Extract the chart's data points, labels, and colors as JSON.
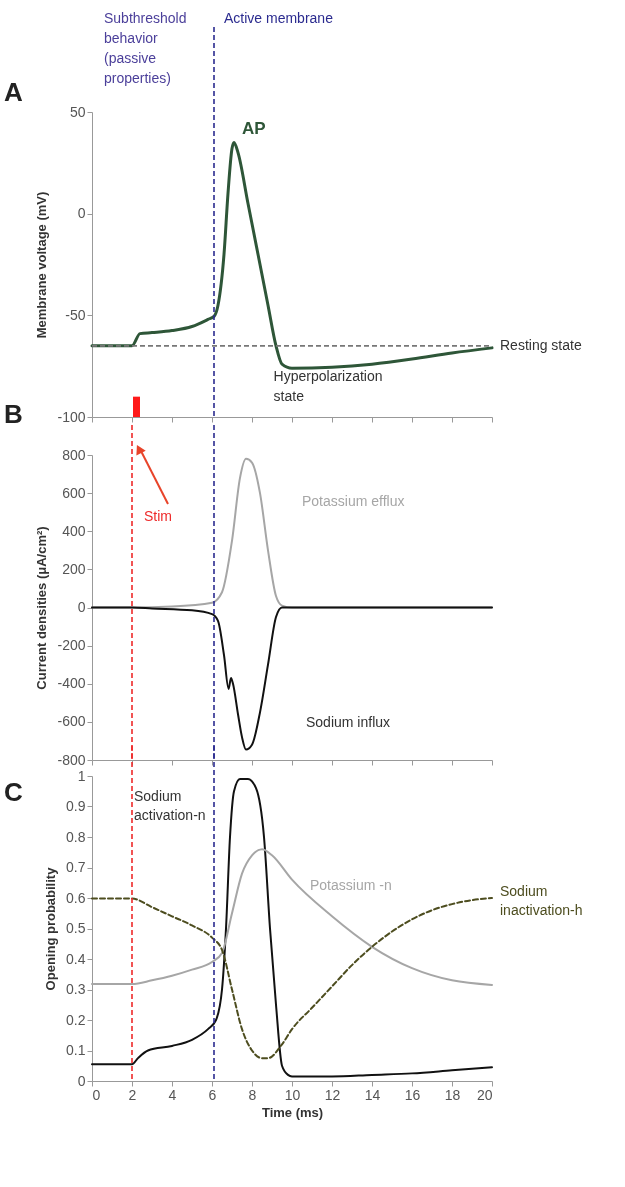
{
  "chart_data": [
    {
      "type": "line",
      "title": "A",
      "ylabel": "Membrane voltage (mV)",
      "xlim": [
        0,
        20
      ],
      "xticks": [
        0,
        2,
        4,
        6,
        8,
        10,
        12,
        14,
        16,
        18,
        20
      ],
      "ylim": [
        -100,
        50
      ],
      "yticks": [
        -100,
        -50,
        0,
        50
      ],
      "tick_labels": "y",
      "series": [
        {
          "color": "#2e5638",
          "x": [
            0,
            2,
            2.4,
            3,
            4,
            5,
            5.8,
            6.1,
            6.3,
            6.6,
            6.8,
            7.0,
            7.1,
            7.3,
            7.8,
            8.3,
            8.8,
            9.2,
            9.5,
            10,
            12,
            14,
            16,
            18,
            20
          ],
          "values": [
            -65,
            -65,
            -59,
            -58.5,
            -57.5,
            -55.5,
            -52,
            -50.5,
            -45,
            -20,
            10,
            32,
            35,
            30,
            5,
            -20,
            -45,
            -65,
            -74,
            -76,
            -75.5,
            -74,
            -71.5,
            -68.5,
            -66
          ]
        },
        {
          "type": "area",
          "color": "#ff1a1a",
          "x": [
            2.05,
            2.05,
            2.4,
            2.4
          ],
          "values": [
            -100,
            -90,
            -90,
            -100
          ]
        }
      ],
      "ref_lines": [
        {
          "axis": "x",
          "value": 6.1,
          "label": "Active membrane",
          "color": "#2b2b8f",
          "line_style": "dashed"
        },
        {
          "axis": "y",
          "value": -65,
          "label": "Resting state",
          "color": "#777777",
          "line_style": "dashed"
        }
      ],
      "annotations": [
        "Subthreshold behavior (passive properties)",
        {
          "text": "AP",
          "x": 7.1,
          "y": 35
        },
        "Hyperpolarization state"
      ]
    },
    {
      "type": "line",
      "title": "B",
      "ylabel": "Current densities (μA/cm²)",
      "xlim": [
        0,
        20
      ],
      "xticks": [
        0,
        2,
        4,
        6,
        8,
        10,
        12,
        14,
        16,
        18,
        20
      ],
      "ylim": [
        -800,
        800
      ],
      "yticks": [
        -800,
        -600,
        -400,
        -200,
        0,
        200,
        400,
        600,
        800
      ],
      "tick_labels": "y",
      "series": [
        {
          "name": "Potassium efflux",
          "color": "#a6a6a6",
          "x": [
            0,
            2,
            4,
            6,
            6.5,
            7,
            7.4,
            7.7,
            8,
            8.4,
            8.8,
            9.2,
            9.5,
            10,
            20
          ],
          "values": [
            0,
            0,
            5,
            25,
            80,
            350,
            680,
            780,
            760,
            600,
            300,
            60,
            10,
            0,
            0
          ]
        },
        {
          "name": "Sodium influx",
          "color": "#111111",
          "x": [
            0,
            2,
            3,
            5,
            6,
            6.3,
            6.6,
            6.83,
            6.95,
            7.05,
            7.3,
            7.5,
            7.7,
            8.0,
            8.4,
            8.8,
            9.2,
            9.5,
            20
          ],
          "values": [
            0,
            0,
            -5,
            -15,
            -35,
            -70,
            -250,
            -427,
            -370,
            -400,
            -560,
            -680,
            -745,
            -720,
            -550,
            -300,
            -50,
            0,
            0
          ]
        }
      ],
      "ref_lines": [
        {
          "axis": "x",
          "value": 2,
          "label": "Stim",
          "color": "#ee2a2a",
          "line_style": "dashed"
        },
        {
          "axis": "x",
          "value": 6.1,
          "color": "#2b2b8f",
          "line_style": "dashed"
        }
      ]
    },
    {
      "type": "line",
      "title": "C",
      "xlabel": "Time (ms)",
      "ylabel": "Opening probability",
      "xlim": [
        0,
        20
      ],
      "xticks": [
        0,
        2,
        4,
        6,
        8,
        10,
        12,
        14,
        16,
        18,
        20
      ],
      "ylim": [
        0,
        1
      ],
      "yticks": [
        0,
        0.1,
        0.2,
        0.3,
        0.4,
        0.5,
        0.6,
        0.7,
        0.8,
        0.9,
        1
      ],
      "series": [
        {
          "name": "Sodium activation-n",
          "color": "#111111",
          "x": [
            0,
            2,
            2.3,
            2.8,
            4,
            5,
            5.8,
            6.2,
            6.5,
            6.7,
            6.9,
            7.1,
            7.4,
            7.8,
            8.2,
            8.6,
            8.9,
            9.2,
            9.5,
            9.8,
            10,
            12,
            14,
            16,
            18,
            20
          ],
          "values": [
            0.055,
            0.055,
            0.075,
            0.1,
            0.115,
            0.135,
            0.17,
            0.2,
            0.3,
            0.5,
            0.8,
            0.95,
            0.99,
            0.99,
            0.96,
            0.8,
            0.5,
            0.25,
            0.05,
            0.02,
            0.015,
            0.015,
            0.02,
            0.025,
            0.035,
            0.045
          ]
        },
        {
          "name": "Potassium -n",
          "color": "#a6a6a6",
          "x": [
            0,
            2,
            3,
            4,
            5,
            6,
            6.5,
            7,
            7.5,
            8,
            8.5,
            9,
            10,
            12,
            14,
            16,
            18,
            20
          ],
          "values": [
            0.318,
            0.318,
            0.33,
            0.345,
            0.365,
            0.39,
            0.42,
            0.55,
            0.68,
            0.74,
            0.76,
            0.74,
            0.66,
            0.54,
            0.44,
            0.37,
            0.33,
            0.315
          ]
        },
        {
          "name": "Sodium inactivation-h",
          "color": "#4d4d1f",
          "line_style": "dashed",
          "x": [
            0,
            2,
            3,
            4,
            5,
            6,
            6.5,
            7,
            7.5,
            8,
            8.5,
            8.8,
            9.5,
            10,
            11,
            12,
            13,
            14,
            15,
            16,
            17,
            18,
            19,
            20
          ],
          "values": [
            0.598,
            0.598,
            0.57,
            0.54,
            0.51,
            0.47,
            0.43,
            0.3,
            0.17,
            0.1,
            0.075,
            0.075,
            0.12,
            0.17,
            0.24,
            0.31,
            0.38,
            0.44,
            0.49,
            0.53,
            0.56,
            0.58,
            0.593,
            0.6
          ]
        }
      ],
      "ref_lines": [
        {
          "axis": "x",
          "value": 2,
          "color": "#ee2a2a",
          "line_style": "dashed"
        },
        {
          "axis": "x",
          "value": 6.1,
          "color": "#2b2b8f",
          "line_style": "dashed"
        }
      ]
    }
  ]
}
